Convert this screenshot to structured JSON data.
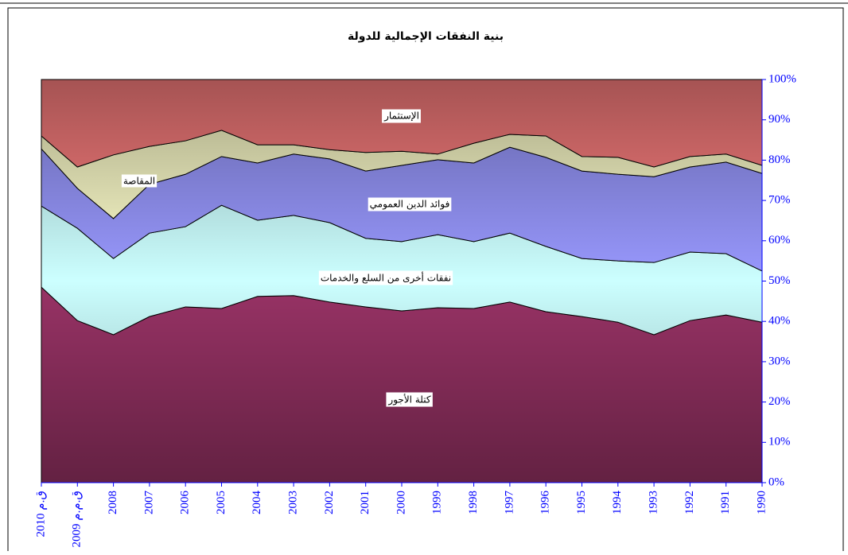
{
  "chart_data": {
    "type": "stacked_area",
    "title": "بنية النفقات الإجمالية للدولة",
    "categories": [
      "ق.م 2010",
      "ق.م.م 2009",
      "2008",
      "2007",
      "2006",
      "2005",
      "2004",
      "2003",
      "2002",
      "2001",
      "2000",
      "1999",
      "1998",
      "1997",
      "1996",
      "1995",
      "1994",
      "1993",
      "1992",
      "1991",
      "1990"
    ],
    "series": [
      {
        "name": "كتلة الأجور",
        "color": "#993366",
        "values": [
          48.5,
          40.2,
          36.7,
          41.2,
          43.6,
          43.2,
          46.2,
          46.4,
          44.8,
          43.6,
          42.6,
          43.4,
          43.2,
          44.8,
          42.4,
          41.2,
          39.8,
          36.7,
          40.2,
          41.6,
          39.8
        ]
      },
      {
        "name": "نفقات أخرى من السلع والخدمات",
        "color": "#ccffff",
        "values": [
          20.1,
          22.9,
          18.9,
          20.7,
          19.9,
          25.6,
          18.9,
          19.9,
          19.7,
          17.0,
          17.2,
          18.1,
          16.6,
          17.1,
          16.2,
          14.4,
          15.2,
          17.9,
          17.0,
          15.2,
          12.7
        ]
      },
      {
        "name": "فوائد الدين العمومي",
        "color": "#9999ff",
        "values": [
          14.2,
          9.9,
          9.9,
          12.1,
          13.0,
          12.1,
          14.2,
          15.2,
          15.8,
          16.7,
          18.9,
          18.6,
          19.5,
          21.3,
          22.1,
          21.7,
          21.5,
          21.3,
          21.1,
          22.7,
          24.2
        ]
      },
      {
        "name": "المقاصة",
        "color": "#ffffcc",
        "values": [
          3.2,
          5.3,
          15.8,
          9.4,
          8.3,
          6.5,
          4.5,
          2.3,
          2.3,
          4.6,
          3.5,
          1.4,
          4.9,
          3.2,
          5.3,
          3.6,
          4.2,
          2.4,
          2.6,
          2.0,
          2.0
        ]
      },
      {
        "name": "الإستثمار",
        "color": "#ff8080",
        "values": [
          14.0,
          21.7,
          18.7,
          16.6,
          15.2,
          12.6,
          16.2,
          16.2,
          17.4,
          18.1,
          17.8,
          18.5,
          15.8,
          13.6,
          14.0,
          19.1,
          19.3,
          21.7,
          19.1,
          18.5,
          21.3
        ]
      }
    ],
    "ylim": [
      0,
      100
    ],
    "yticks": [
      {
        "value": 0,
        "label": "0%"
      },
      {
        "value": 10,
        "label": "10%"
      },
      {
        "value": 20,
        "label": "20%"
      },
      {
        "value": 30,
        "label": "30%"
      },
      {
        "value": 40,
        "label": "40%"
      },
      {
        "value": 50,
        "label": "50%"
      },
      {
        "value": 60,
        "label": "60%"
      },
      {
        "value": 70,
        "label": "70%"
      },
      {
        "value": 80,
        "label": "80%"
      },
      {
        "value": 90,
        "label": "90%"
      },
      {
        "value": 100,
        "label": "100%"
      }
    ],
    "axis_color": "#0000ff"
  }
}
